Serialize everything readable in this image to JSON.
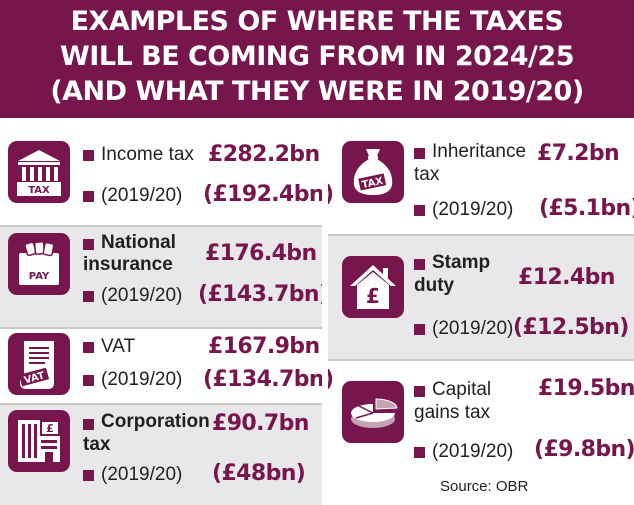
{
  "header": {
    "line1": "EXAMPLES OF WHERE THE TAXES",
    "line2": "WILL BE COMING FROM IN 2024/25",
    "line3": "(AND WHAT THEY WERE IN 2019/20)"
  },
  "colors": {
    "brand": "#76164d",
    "shade": "#e8e8ea",
    "text": "#231f20"
  },
  "items": [
    {
      "icon": "tax-building-icon",
      "icon_text": "TAX",
      "label1": "Income tax",
      "label2": "",
      "value": "£282.2bn",
      "prev_label": "(2019/20)",
      "prev_value": "(£192.4bn)"
    },
    {
      "icon": "pay-slip-icon",
      "icon_text": "PAY",
      "label1": "National",
      "label2": "insurance",
      "value": "£176.4bn",
      "prev_label": "(2019/20)",
      "prev_value": "(£143.7bn)"
    },
    {
      "icon": "vat-scroll-icon",
      "icon_text": "VAT",
      "label1": "VAT",
      "label2": "",
      "value": "£167.9bn",
      "prev_label": "(2019/20)",
      "prev_value": "(£134.7bn)"
    },
    {
      "icon": "corporation-building-icon",
      "icon_text": "£",
      "label1": "Corporation",
      "label2": "tax",
      "value": "£90.7bn",
      "prev_label": "(2019/20)",
      "prev_value": "(£48bn)"
    },
    {
      "icon": "tax-bag-icon",
      "icon_text": "TAX",
      "label1": "Inheritance",
      "label2": "tax",
      "value": "£7.2bn",
      "prev_label": "(2019/20)",
      "prev_value": "(£5.1bn)"
    },
    {
      "icon": "house-pound-icon",
      "icon_text": "£",
      "label1": "Stamp",
      "label2": "duty",
      "value": "£12.4bn",
      "prev_label": "(2019/20)",
      "prev_value": "(£12.5bn)"
    },
    {
      "icon": "pie-chart-icon",
      "icon_text": "",
      "label1": "Capital",
      "label2": "gains tax",
      "value": "£19.5bn",
      "prev_label": "(2019/20)",
      "prev_value": "(£9.8bn)"
    }
  ],
  "source": "Source: OBR"
}
